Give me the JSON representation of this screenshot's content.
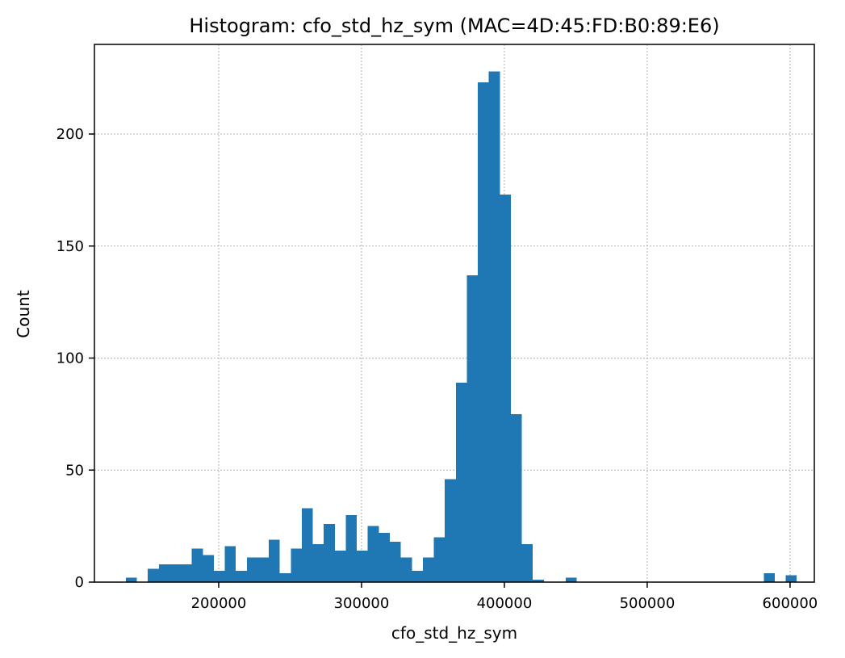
{
  "chart_data": {
    "type": "bar",
    "histogram": true,
    "title": "Histogram: cfo_std_hz_sym (MAC=4D:45:FD:B0:89:E6)",
    "xlabel": "cfo_std_hz_sym",
    "ylabel": "Count",
    "xlim": [
      113000,
      617000
    ],
    "ylim": [
      0,
      240
    ],
    "x_ticks": [
      200000,
      300000,
      400000,
      500000,
      600000
    ],
    "y_ticks": [
      0,
      50,
      100,
      150,
      200
    ],
    "grid": true,
    "bar_color": "#1f77b4",
    "bin_start": 135000,
    "bin_width": 7700,
    "counts": [
      2,
      0,
      6,
      8,
      8,
      8,
      15,
      12,
      5,
      16,
      5,
      11,
      11,
      19,
      4,
      15,
      33,
      17,
      26,
      14,
      30,
      14,
      25,
      22,
      18,
      11,
      5,
      11,
      20,
      46,
      89,
      137,
      223,
      228,
      173,
      75,
      17,
      1,
      0,
      0,
      2,
      0,
      0,
      0,
      0,
      0,
      0,
      0,
      0,
      0,
      0,
      0,
      0,
      0,
      0,
      0,
      0,
      0,
      4,
      0,
      3
    ]
  }
}
